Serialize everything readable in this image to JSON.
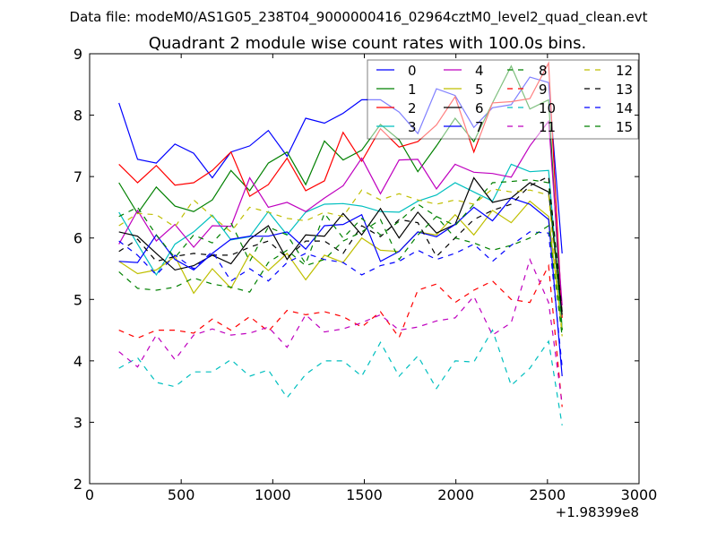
{
  "chart_data": {
    "type": "line",
    "suptitle": "Data file: modeM0/AS1G05_238T04_9000000416_02964cztM0_level2_quad_clean.evt",
    "title": "Quadrant 2 module wise count rates with 100.0s bins.",
    "xlabel": "",
    "ylabel": "",
    "x_offset_label": "+1.98399e8",
    "xlim": [
      0,
      3000
    ],
    "ylim": [
      2,
      9
    ],
    "xticks": [
      0,
      500,
      1000,
      1500,
      2000,
      2500,
      3000
    ],
    "yticks": [
      2,
      3,
      4,
      5,
      6,
      7,
      8,
      9
    ],
    "grid": false,
    "legend_placement": "top-right",
    "legend_columns": 4,
    "x": [
      160,
      262,
      364,
      466,
      568,
      670,
      772,
      874,
      976,
      1078,
      1180,
      1282,
      1384,
      1486,
      1588,
      1690,
      1792,
      1894,
      1996,
      2098,
      2200,
      2302,
      2404,
      2506,
      2580
    ],
    "series": [
      {
        "name": "0",
        "color": "#0000ff",
        "style": "solid",
        "values": [
          8.2,
          7.28,
          7.22,
          7.53,
          7.38,
          6.98,
          7.4,
          7.5,
          7.75,
          7.33,
          7.95,
          7.87,
          8.03,
          8.25,
          8.25,
          8.05,
          7.7,
          8.43,
          8.32,
          7.8,
          8.12,
          8.17,
          8.62,
          8.53,
          5.75
        ]
      },
      {
        "name": "1",
        "color": "#008000",
        "style": "solid",
        "values": [
          6.9,
          6.4,
          6.83,
          6.52,
          6.43,
          6.62,
          7.1,
          6.77,
          7.22,
          7.4,
          6.87,
          7.58,
          7.27,
          7.43,
          7.85,
          7.6,
          7.08,
          7.5,
          7.95,
          7.57,
          8.2,
          8.8,
          8.1,
          8.25,
          4.5
        ]
      },
      {
        "name": "2",
        "color": "#ff0000",
        "style": "solid",
        "values": [
          7.2,
          6.9,
          7.18,
          6.86,
          6.9,
          7.1,
          7.4,
          6.68,
          6.87,
          7.3,
          6.77,
          6.93,
          7.72,
          7.25,
          7.78,
          7.48,
          7.57,
          7.84,
          8.3,
          7.4,
          8.2,
          8.22,
          8.27,
          8.85,
          4.7
        ]
      },
      {
        "name": "3",
        "color": "#00bfbf",
        "style": "solid",
        "values": [
          6.42,
          5.9,
          5.4,
          5.9,
          6.1,
          6.37,
          5.97,
          6.02,
          6.43,
          6.05,
          6.42,
          6.55,
          6.56,
          6.52,
          6.43,
          6.42,
          6.6,
          6.7,
          6.9,
          6.75,
          6.6,
          7.2,
          7.08,
          7.1,
          4.5
        ]
      },
      {
        "name": "4",
        "color": "#bf00bf",
        "style": "solid",
        "values": [
          5.9,
          6.45,
          5.95,
          6.22,
          5.85,
          6.2,
          6.19,
          6.98,
          6.5,
          6.58,
          6.43,
          6.65,
          6.85,
          7.3,
          6.72,
          7.27,
          7.28,
          6.8,
          7.2,
          7.07,
          7.05,
          6.99,
          7.5,
          7.9,
          4.9
        ]
      },
      {
        "name": "5",
        "color": "#bfbf00",
        "style": "solid",
        "values": [
          5.62,
          5.42,
          5.48,
          5.7,
          5.1,
          5.5,
          5.18,
          5.74,
          5.47,
          5.75,
          5.32,
          5.72,
          5.6,
          6.0,
          5.8,
          5.78,
          6.1,
          6.05,
          6.38,
          6.05,
          6.45,
          6.25,
          6.6,
          6.35,
          4.5
        ]
      },
      {
        "name": "6",
        "color": "#000000",
        "style": "solid",
        "values": [
          6.1,
          6.03,
          5.75,
          5.48,
          5.55,
          5.72,
          5.58,
          5.98,
          6.2,
          5.65,
          6.05,
          6.03,
          6.4,
          6.05,
          6.48,
          6.0,
          6.42,
          6.08,
          6.22,
          6.98,
          6.58,
          6.65,
          6.9,
          6.75,
          4.75
        ]
      },
      {
        "name": "7",
        "color": "#0000ff",
        "style": "solid",
        "values": [
          5.62,
          5.6,
          6.05,
          5.65,
          5.48,
          5.75,
          5.98,
          6.03,
          6.03,
          6.1,
          5.82,
          6.2,
          6.22,
          6.38,
          5.62,
          5.78,
          6.1,
          6.02,
          6.22,
          6.5,
          6.28,
          6.65,
          6.55,
          6.3,
          3.75
        ]
      },
      {
        "name": "8",
        "color": "#008000",
        "style": "dashed",
        "values": [
          6.35,
          6.5,
          6.05,
          5.68,
          6.05,
          5.92,
          6.25,
          5.62,
          6.18,
          6.05,
          5.58,
          6.4,
          6.0,
          6.32,
          6.05,
          6.27,
          6.55,
          6.35,
          6.2,
          6.55,
          6.9,
          6.92,
          6.95,
          6.9,
          4.5
        ]
      },
      {
        "name": "9",
        "color": "#ff0000",
        "style": "dashed",
        "values": [
          4.5,
          4.37,
          4.5,
          4.5,
          4.45,
          4.68,
          4.5,
          4.72,
          4.48,
          4.82,
          4.75,
          4.8,
          4.72,
          4.55,
          4.8,
          4.38,
          5.15,
          5.25,
          4.95,
          5.15,
          5.3,
          5.0,
          4.95,
          5.55,
          3.25
        ]
      },
      {
        "name": "10",
        "color": "#00bfbf",
        "style": "dashed",
        "values": [
          3.88,
          4.05,
          3.65,
          3.58,
          3.82,
          3.82,
          4.02,
          3.75,
          3.85,
          3.4,
          3.78,
          4.0,
          4.0,
          3.75,
          4.3,
          3.75,
          4.08,
          3.55,
          4.0,
          3.98,
          4.5,
          3.6,
          3.88,
          4.32,
          2.95
        ]
      },
      {
        "name": "11",
        "color": "#bf00bf",
        "style": "dashed",
        "values": [
          4.15,
          3.9,
          4.42,
          4.02,
          4.42,
          4.52,
          4.42,
          4.45,
          4.55,
          4.22,
          4.75,
          4.47,
          4.52,
          4.62,
          4.75,
          4.5,
          4.55,
          4.65,
          4.7,
          5.05,
          4.42,
          4.62,
          5.65,
          4.95,
          3.3
        ]
      },
      {
        "name": "12",
        "color": "#bfbf00",
        "style": "dashed",
        "values": [
          6.2,
          6.4,
          6.38,
          6.18,
          6.62,
          6.35,
          6.1,
          6.5,
          6.42,
          6.32,
          6.28,
          6.42,
          6.35,
          6.78,
          6.62,
          6.72,
          6.62,
          6.55,
          6.62,
          6.55,
          6.8,
          6.75,
          6.78,
          6.7,
          4.4
        ]
      },
      {
        "name": "13",
        "color": "#000000",
        "style": "dashed",
        "values": [
          5.78,
          5.98,
          5.62,
          5.7,
          5.75,
          5.72,
          5.72,
          5.85,
          5.95,
          5.68,
          5.95,
          5.95,
          5.75,
          6.2,
          6.02,
          6.3,
          6.25,
          5.7,
          6.0,
          6.3,
          6.45,
          6.55,
          6.85,
          7.0,
          4.8
        ]
      },
      {
        "name": "14",
        "color": "#0000ff",
        "style": "dashed",
        "values": [
          5.95,
          5.72,
          5.4,
          5.72,
          5.5,
          5.78,
          5.3,
          5.5,
          5.3,
          5.6,
          5.75,
          5.65,
          5.6,
          5.4,
          5.55,
          5.62,
          5.8,
          5.65,
          5.75,
          5.9,
          5.62,
          5.88,
          6.1,
          6.08,
          3.9
        ]
      },
      {
        "name": "15",
        "color": "#008000",
        "style": "dashed",
        "values": [
          5.45,
          5.18,
          5.15,
          5.2,
          5.35,
          5.25,
          5.2,
          5.12,
          5.6,
          5.8,
          5.55,
          5.65,
          5.95,
          6.1,
          6.3,
          5.65,
          6.05,
          6.35,
          6.0,
          5.92,
          5.8,
          5.88,
          6.0,
          6.2,
          4.4
        ]
      }
    ]
  }
}
